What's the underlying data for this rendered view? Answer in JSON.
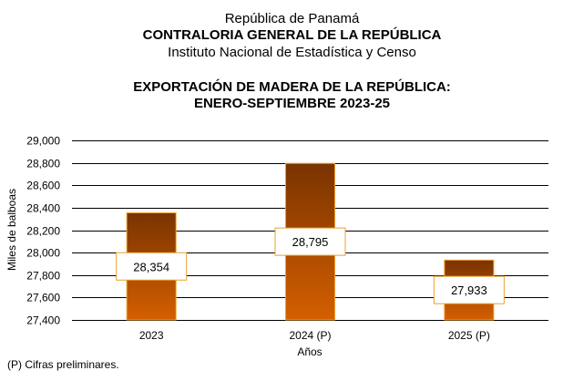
{
  "header": {
    "line1": "República de Panamá",
    "line2": "CONTRALORIA GENERAL DE LA REPÚBLICA",
    "line3": "Instituto Nacional de Estadística y Censo"
  },
  "colors": {
    "bar_top": "#7a3300",
    "bar_bottom": "#d45f00",
    "bar_border": "#f0a030",
    "label_border": "#e8a030",
    "grid": "#000000"
  },
  "chart_data": {
    "type": "bar",
    "title": "EXPORTACIÓN DE MADERA DE LA REPÚBLICA:",
    "subtitle": "ENERO-SEPTIEMBRE 2023-25",
    "categories": [
      "2023",
      "2024 (P)",
      "2025 (P)"
    ],
    "values": [
      28354,
      28795,
      27933
    ],
    "data_labels": [
      "28,354",
      "28,795",
      "27,933"
    ],
    "xlabel": "Años",
    "ylabel": "Miles de balboas",
    "ylim": [
      27400,
      29000
    ],
    "yticks": [
      27400,
      27600,
      27800,
      28000,
      28200,
      28400,
      28600,
      28800,
      29000
    ],
    "ytick_labels": [
      "27,400",
      "27,600",
      "27,800",
      "28,000",
      "28,200",
      "28,400",
      "28,600",
      "28,800",
      "29,000"
    ],
    "grid": true,
    "legend": "none"
  },
  "footnote": "(P) Cifras  preliminares."
}
